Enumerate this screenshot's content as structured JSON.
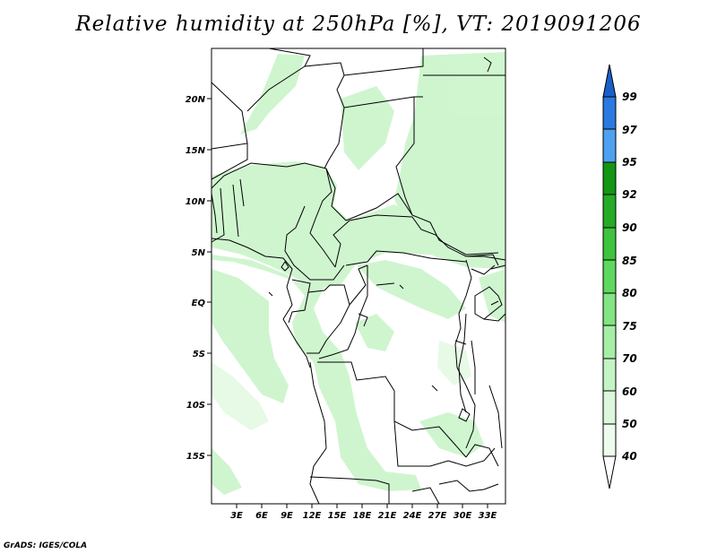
{
  "title": "Relative humidity at 250hPa [%], VT: 2019091206",
  "credit": "GrADS: IGES/COLA",
  "map": {
    "lat_ticks": [
      "20N",
      "15N",
      "10N",
      "5N",
      "EQ",
      "5S",
      "10S",
      "15S"
    ],
    "lon_ticks": [
      "3E",
      "6E",
      "9E",
      "12E",
      "15E",
      "18E",
      "21E",
      "24E",
      "27E",
      "30E",
      "33E"
    ]
  },
  "colorbar": {
    "labels": [
      "99",
      "97",
      "95",
      "92",
      "90",
      "85",
      "80",
      "75",
      "70",
      "60",
      "50",
      "40"
    ],
    "colors": {
      "arrow_top": "#1a5fc8",
      "c97": "#2979e0",
      "c95": "#4ea1f0",
      "c92": "#149614",
      "c90": "#26ab26",
      "c85": "#3ec43e",
      "c80": "#5ed85e",
      "c75": "#82e482",
      "c70": "#a6eea6",
      "c60": "#c4f4c4",
      "c50": "#dcf8dc",
      "c40": "#eefcee",
      "arrow_bottom": "#ffffff"
    }
  }
}
